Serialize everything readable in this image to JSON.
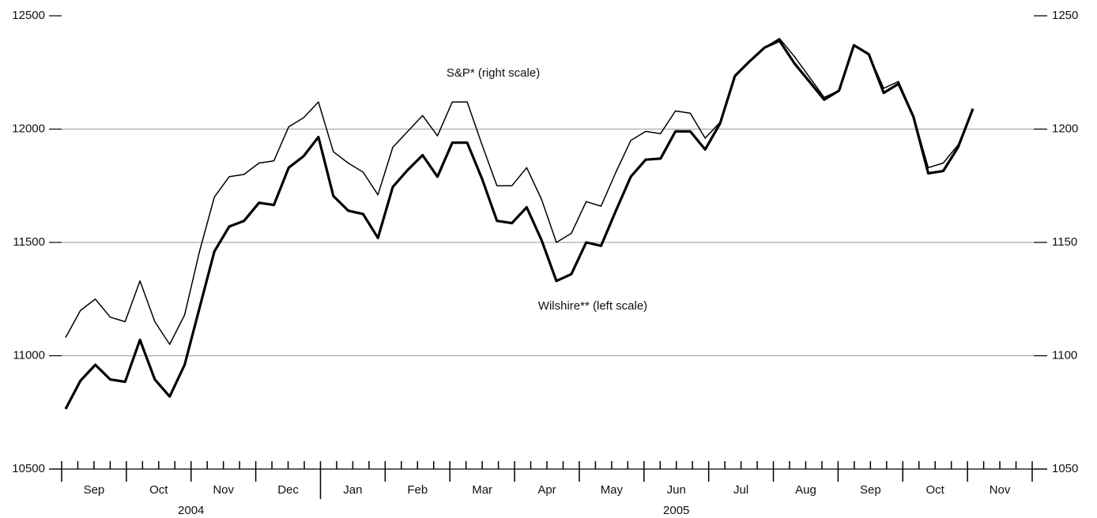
{
  "chart_data": {
    "type": "line",
    "months": [
      "Sep",
      "Oct",
      "Nov",
      "Dec",
      "Jan",
      "Feb",
      "Mar",
      "Apr",
      "May",
      "Jun",
      "Jul",
      "Aug",
      "Sep",
      "Oct",
      "Nov"
    ],
    "years": [
      "2004",
      "2005"
    ],
    "annotations": [
      "S&P* (right scale)",
      "Wilshire** (left scale)"
    ],
    "ylim": [
      10500,
      12500
    ],
    "yticks": [
      10500,
      11000,
      11500,
      12000,
      12500
    ],
    "y2lim": [
      1050,
      1250
    ],
    "y2ticks": [
      1050,
      1100,
      1150,
      1200,
      1250
    ],
    "grid": true,
    "series": [
      {
        "name": "Wilshire** (left scale)",
        "color": "#000000",
        "axis": "y",
        "values": [
          10765,
          10890,
          10960,
          10895,
          10885,
          11070,
          10895,
          10820,
          10960,
          11210,
          11460,
          11570,
          11595,
          11675,
          11665,
          11830,
          11880,
          11965,
          11705,
          11640,
          11625,
          11520,
          11745,
          11820,
          11885,
          11790,
          11940,
          11940,
          11780,
          11595,
          11585,
          11655,
          11510,
          11330,
          11360,
          11500,
          11485,
          11640,
          11790,
          11865,
          11870,
          11990,
          11990,
          11910,
          12025,
          12235,
          12300,
          12360,
          12390,
          12290,
          12210,
          12130,
          12170,
          12370,
          12330,
          12160,
          12200,
          12055,
          11805,
          11815,
          11920,
          12090
        ]
      },
      {
        "name": "S&P* (right scale)",
        "color": "#000000",
        "axis": "y2",
        "values": [
          1108,
          1120,
          1125,
          1117,
          1115,
          1133,
          1115,
          1105,
          1118,
          1146,
          1170,
          1179,
          1180,
          1185,
          1186,
          1201,
          1205,
          1212,
          1190,
          1185,
          1181,
          1171,
          1192,
          1199,
          1206,
          1197,
          1212,
          1212,
          1193,
          1175,
          1175,
          1183,
          1169,
          1150,
          1154,
          1168,
          1166,
          1181,
          1195,
          1199,
          1198,
          1208,
          1207,
          1196,
          1203,
          1223,
          1230,
          1236,
          1240,
          1232,
          1223,
          1214,
          1217,
          1237,
          1233,
          1218,
          1221,
          1206,
          1183,
          1185,
          1193,
          1209
        ]
      }
    ]
  }
}
